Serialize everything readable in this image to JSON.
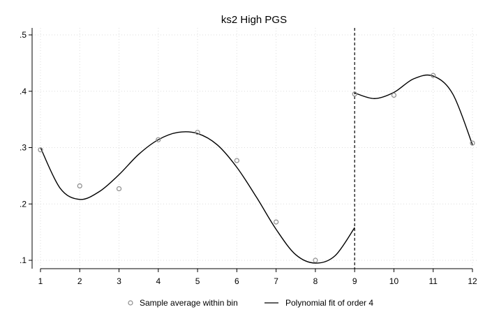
{
  "chart_data": {
    "type": "scatter",
    "title": "ks2 High PGS",
    "xlabel": "",
    "ylabel": "",
    "xlim": [
      1,
      12
    ],
    "ylim": [
      0.09,
      0.5
    ],
    "x_ticks": [
      1,
      2,
      3,
      4,
      5,
      6,
      7,
      8,
      9,
      10,
      11,
      12
    ],
    "x_tick_labels": [
      "1",
      "2",
      "3",
      "4",
      "5",
      "6",
      "7",
      "8",
      "9",
      "10",
      "11",
      "12"
    ],
    "y_ticks": [
      0.1,
      0.2,
      0.3,
      0.4,
      0.5
    ],
    "y_tick_labels": [
      ".1",
      ".2",
      ".3",
      ".4",
      ".5"
    ],
    "grid": true,
    "cutoff_x": 9,
    "legend_position": "bottom",
    "series": [
      {
        "name": "Sample average within bin",
        "kind": "scatter",
        "x": [
          1,
          2,
          3,
          4,
          5,
          6,
          7,
          8,
          9,
          10,
          11,
          12
        ],
        "y": [
          0.296,
          0.232,
          0.227,
          0.314,
          0.327,
          0.277,
          0.168,
          0.1,
          0.395,
          0.393,
          0.428,
          0.308
        ]
      },
      {
        "name": "Polynomial fit of order 4",
        "kind": "line",
        "segments": [
          {
            "x": [
              1,
              1.5,
              2,
              2.5,
              3,
              3.5,
              4,
              4.5,
              5,
              5.5,
              6,
              6.5,
              7,
              7.5,
              8,
              8.5,
              9
            ],
            "y": [
              0.3,
              0.228,
              0.208,
              0.222,
              0.252,
              0.288,
              0.314,
              0.327,
              0.325,
              0.305,
              0.265,
              0.212,
              0.155,
              0.11,
              0.095,
              0.108,
              0.158
            ]
          },
          {
            "x": [
              9,
              9.5,
              10,
              10.5,
              11,
              11.5,
              12
            ],
            "y": [
              0.397,
              0.387,
              0.398,
              0.422,
              0.427,
              0.395,
              0.305
            ]
          }
        ]
      }
    ],
    "colors": {
      "marker_stroke": "#8c8c8c",
      "fit_line": "#000000",
      "grid": "#dddddd",
      "axis": "#000000"
    }
  }
}
